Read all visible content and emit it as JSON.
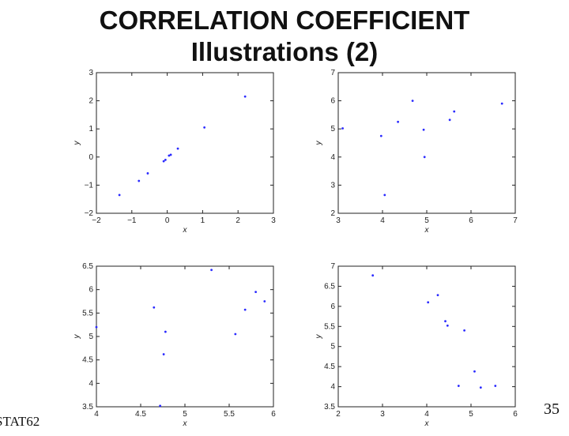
{
  "slide": {
    "title_line1": "CORRELATION COEFFICIENT",
    "title_line2": "Illustrations (2)",
    "footer_left": "STAT62",
    "page_number": "35"
  },
  "chart_data": [
    {
      "type": "scatter",
      "xlabel": "x",
      "ylabel": "y",
      "xlim": [
        -2,
        3
      ],
      "ylim": [
        -2,
        3
      ],
      "xticks": [
        -2,
        -1,
        0,
        1,
        2,
        3
      ],
      "yticks": [
        -2,
        -1,
        0,
        1,
        2,
        3
      ],
      "point_color": "#2a2aff",
      "points": [
        {
          "x": -1.35,
          "y": -1.35
        },
        {
          "x": -0.8,
          "y": -0.85
        },
        {
          "x": -0.55,
          "y": -0.58
        },
        {
          "x": -0.1,
          "y": -0.15
        },
        {
          "x": -0.05,
          "y": -0.1
        },
        {
          "x": 0.05,
          "y": 0.05
        },
        {
          "x": 0.1,
          "y": 0.08
        },
        {
          "x": 0.3,
          "y": 0.3
        },
        {
          "x": 1.05,
          "y": 1.05
        },
        {
          "x": 2.2,
          "y": 2.15
        }
      ]
    },
    {
      "type": "scatter",
      "xlabel": "x",
      "ylabel": "y",
      "xlim": [
        3,
        7
      ],
      "ylim": [
        2,
        7
      ],
      "xticks": [
        3,
        4,
        5,
        6,
        7
      ],
      "yticks": [
        2,
        3,
        4,
        5,
        6,
        7
      ],
      "point_color": "#2a2aff",
      "points": [
        {
          "x": 3.1,
          "y": 5.02
        },
        {
          "x": 3.97,
          "y": 4.75
        },
        {
          "x": 4.05,
          "y": 2.65
        },
        {
          "x": 4.35,
          "y": 5.25
        },
        {
          "x": 4.68,
          "y": 6.0
        },
        {
          "x": 4.93,
          "y": 4.97
        },
        {
          "x": 4.95,
          "y": 4.0
        },
        {
          "x": 5.52,
          "y": 5.32
        },
        {
          "x": 5.62,
          "y": 5.62
        },
        {
          "x": 6.7,
          "y": 5.9
        }
      ]
    },
    {
      "type": "scatter",
      "xlabel": "x",
      "ylabel": "y",
      "xlim": [
        4,
        6
      ],
      "ylim": [
        3.5,
        6.5
      ],
      "xticks": [
        4,
        4.5,
        5,
        5.5,
        6
      ],
      "yticks": [
        3.5,
        4,
        4.5,
        5,
        5.5,
        6,
        6.5
      ],
      "point_color": "#2a2aff",
      "points": [
        {
          "x": 4.0,
          "y": 5.2
        },
        {
          "x": 4.65,
          "y": 5.62
        },
        {
          "x": 4.72,
          "y": 3.52
        },
        {
          "x": 4.76,
          "y": 4.62
        },
        {
          "x": 4.78,
          "y": 5.1
        },
        {
          "x": 5.3,
          "y": 6.42
        },
        {
          "x": 5.57,
          "y": 5.05
        },
        {
          "x": 5.68,
          "y": 5.57
        },
        {
          "x": 5.8,
          "y": 5.95
        },
        {
          "x": 5.9,
          "y": 5.75
        }
      ]
    },
    {
      "type": "scatter",
      "xlabel": "x",
      "ylabel": "y",
      "xlim": [
        2,
        6
      ],
      "ylim": [
        3.5,
        7
      ],
      "xticks": [
        2,
        3,
        4,
        5,
        6
      ],
      "yticks": [
        3.5,
        4,
        4.5,
        5,
        5.5,
        6,
        6.5,
        7
      ],
      "point_color": "#2a2aff",
      "points": [
        {
          "x": 2.78,
          "y": 6.77
        },
        {
          "x": 4.03,
          "y": 6.1
        },
        {
          "x": 4.25,
          "y": 6.28
        },
        {
          "x": 4.42,
          "y": 5.63
        },
        {
          "x": 4.47,
          "y": 5.52
        },
        {
          "x": 4.85,
          "y": 5.4
        },
        {
          "x": 4.72,
          "y": 4.02
        },
        {
          "x": 5.08,
          "y": 4.38
        },
        {
          "x": 5.22,
          "y": 3.98
        },
        {
          "x": 5.55,
          "y": 4.02
        }
      ]
    }
  ]
}
